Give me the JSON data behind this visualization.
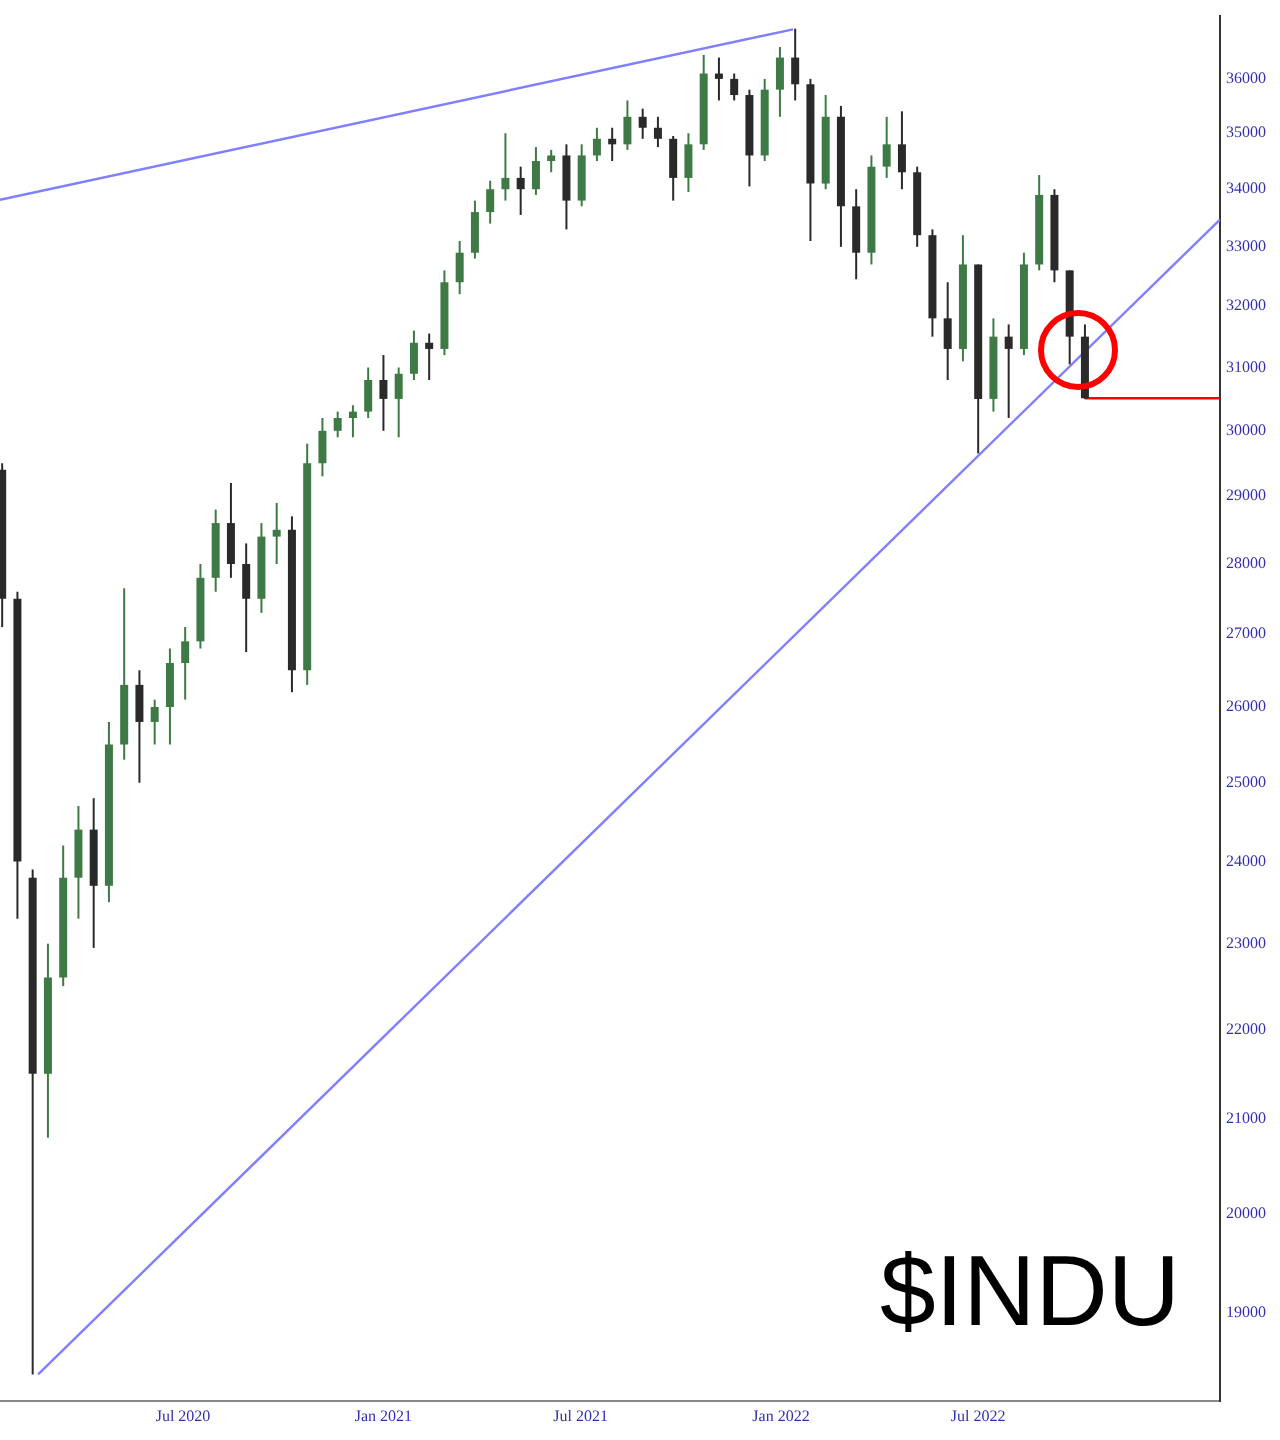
{
  "chart_data": {
    "type": "candlestick",
    "title": "$INDU",
    "colors": [
      "#2a2a2a",
      "#2a2a2a",
      "#2a2a2a",
      "#3d7a45",
      "#3d7a45",
      "#3d7a45",
      "#2a2a2a",
      "#3d7a45",
      "#3d7a45",
      "#2a2a2a",
      "#3d7a45",
      "#3d7a45",
      "#3d7a45",
      "#3d7a45",
      "#3d7a45",
      "#2a2a2a",
      "#2a2a2a",
      "#3d7a45",
      "#3d7a45",
      "#2a2a2a",
      "#3d7a45",
      "#3d7a45",
      "#3d7a45",
      "#3d7a45",
      "#3d7a45",
      "#2a2a2a",
      "#3d7a45",
      "#3d7a45",
      "#2a2a2a",
      "#3d7a45",
      "#3d7a45",
      "#3d7a45",
      "#3d7a45",
      "#3d7a45",
      "#2a2a2a",
      "#3d7a45",
      "#3d7a45",
      "#2a2a2a",
      "#3d7a45",
      "#3d7a45",
      "#2a2a2a",
      "#3d7a45",
      "#2a2a2a",
      "#2a2a2a",
      "#2a2a2a",
      "#3d7a45",
      "#3d7a45",
      "#2a2a2a",
      "#2a2a2a",
      "#2a2a2a",
      "#3d7a45",
      "#3d7a45",
      "#2a2a2a",
      "#2a2a2a",
      "#3d7a45",
      "#2a2a2a",
      "#2a2a2a",
      "#3d7a45",
      "#3d7a45",
      "#2a2a2a",
      "#2a2a2a",
      "#2a2a2a",
      "#2a2a2a",
      "#3d7a45",
      "#2a2a2a",
      "#3d7a45",
      "#2a2a2a",
      "#3d7a45",
      "#3d7a45",
      "#2a2a2a",
      "#2a2a2a",
      "#2a2a2a"
    ],
    "xlim": [
      "2020-01-15",
      "2023-02-08"
    ],
    "xticks": [
      {
        "value": "2020-07-01",
        "label": "Jul 2020"
      },
      {
        "value": "2021-01-01",
        "label": "Jan 2021"
      },
      {
        "value": "2021-07-01",
        "label": "Jul 2021"
      },
      {
        "value": "2022-01-01",
        "label": "Jan 2022"
      },
      {
        "value": "2022-07-01",
        "label": "Jul 2022"
      }
    ],
    "ylim": [
      18150,
      37200
    ],
    "log": true,
    "grid": false,
    "yticks": [
      19000,
      20000,
      21000,
      22000,
      23000,
      24000,
      25000,
      26000,
      27000,
      28000,
      29000,
      30000,
      31000,
      32000,
      33000,
      34000,
      35000,
      36000
    ],
    "x": [
      "2020-01-17",
      "2020-01-31",
      "2020-02-14",
      "2020-02-28",
      "2020-03-13",
      "2020-03-27",
      "2020-04-10",
      "2020-04-24",
      "2020-05-08",
      "2020-05-22",
      "2020-06-05",
      "2020-06-19",
      "2020-07-03",
      "2020-07-17",
      "2020-07-31",
      "2020-08-14",
      "2020-08-28",
      "2020-09-11",
      "2020-09-25",
      "2020-10-09",
      "2020-10-23",
      "2020-11-06",
      "2020-11-20",
      "2020-12-04",
      "2020-12-18",
      "2021-01-01",
      "2021-01-15",
      "2021-01-29",
      "2021-02-12",
      "2021-02-26",
      "2021-03-12",
      "2021-03-26",
      "2021-04-09",
      "2021-04-23",
      "2021-05-07",
      "2021-05-21",
      "2021-06-04",
      "2021-06-18",
      "2021-07-02",
      "2021-07-16",
      "2021-07-30",
      "2021-08-13",
      "2021-08-27",
      "2021-09-10",
      "2021-09-24",
      "2021-10-08",
      "2021-10-22",
      "2021-11-05",
      "2021-11-19",
      "2021-12-03",
      "2021-12-17",
      "2021-12-31",
      "2022-01-14",
      "2022-01-28",
      "2022-02-11",
      "2022-02-25",
      "2022-03-11",
      "2022-03-25",
      "2022-04-08",
      "2022-04-22",
      "2022-05-06",
      "2022-05-20",
      "2022-06-03",
      "2022-06-17",
      "2022-07-01",
      "2022-07-15",
      "2022-07-29",
      "2022-08-12",
      "2022-08-26",
      "2022-09-09",
      "2022-09-23",
      "2022-10-07"
    ],
    "ohlc": [
      [
        29400,
        29500,
        27100,
        27500
      ],
      [
        27500,
        27600,
        23300,
        24000
      ],
      [
        23800,
        23900,
        18400,
        21500
      ],
      [
        21500,
        23000,
        20800,
        22600
      ],
      [
        22600,
        24200,
        22500,
        23800
      ],
      [
        23800,
        24700,
        23300,
        24400
      ],
      [
        24400,
        24800,
        22950,
        23700
      ],
      [
        23700,
        25800,
        23500,
        25500
      ],
      [
        25500,
        27650,
        25300,
        26300
      ],
      [
        26300,
        26500,
        25000,
        25800
      ],
      [
        25800,
        26100,
        25500,
        26000
      ],
      [
        26000,
        26800,
        25500,
        26600
      ],
      [
        26600,
        27100,
        26100,
        26900
      ],
      [
        26900,
        28000,
        26800,
        27800
      ],
      [
        27800,
        28800,
        27600,
        28600
      ],
      [
        28600,
        29200,
        27800,
        28000
      ],
      [
        28000,
        28300,
        26750,
        27500
      ],
      [
        27500,
        28600,
        27300,
        28400
      ],
      [
        28400,
        28900,
        28000,
        28500
      ],
      [
        28500,
        28700,
        26200,
        26500
      ],
      [
        26500,
        29800,
        26300,
        29500
      ],
      [
        29500,
        30200,
        29300,
        30000
      ],
      [
        30000,
        30300,
        29900,
        30200
      ],
      [
        30200,
        30400,
        29900,
        30300
      ],
      [
        30300,
        31000,
        30200,
        30800
      ],
      [
        30800,
        31200,
        30000,
        30500
      ],
      [
        30500,
        31000,
        29900,
        30900
      ],
      [
        30900,
        31600,
        30800,
        31400
      ],
      [
        31400,
        31550,
        30800,
        31300
      ],
      [
        31300,
        32600,
        31200,
        32400
      ],
      [
        32400,
        33100,
        32200,
        32900
      ],
      [
        32900,
        33800,
        32800,
        33600
      ],
      [
        33600,
        34150,
        33400,
        34000
      ],
      [
        34000,
        35000,
        33800,
        34200
      ],
      [
        34200,
        34400,
        33550,
        34000
      ],
      [
        34000,
        34750,
        33900,
        34500
      ],
      [
        34500,
        34700,
        34300,
        34600
      ],
      [
        34600,
        34800,
        33300,
        33800
      ],
      [
        33800,
        34800,
        33700,
        34600
      ],
      [
        34600,
        35100,
        34500,
        34900
      ],
      [
        34900,
        35100,
        34500,
        34800
      ],
      [
        34800,
        35600,
        34700,
        35300
      ],
      [
        35300,
        35450,
        34900,
        35100
      ],
      [
        35100,
        35300,
        34750,
        34900
      ],
      [
        34900,
        34950,
        33800,
        34200
      ],
      [
        34200,
        35000,
        33950,
        34800
      ],
      [
        34800,
        36450,
        34700,
        36100
      ],
      [
        36100,
        36400,
        35600,
        36000
      ],
      [
        36000,
        36100,
        35600,
        35700
      ],
      [
        35700,
        35800,
        34050,
        34600
      ],
      [
        34600,
        36000,
        34500,
        35800
      ],
      [
        35800,
        36600,
        35300,
        36400
      ],
      [
        36400,
        36950,
        35600,
        35900
      ],
      [
        35900,
        36000,
        33100,
        34100
      ],
      [
        34100,
        35700,
        34000,
        35300
      ],
      [
        35300,
        35500,
        33000,
        33700
      ],
      [
        33700,
        34000,
        32450,
        32900
      ],
      [
        32900,
        34600,
        32700,
        34400
      ],
      [
        34400,
        35300,
        34200,
        34800
      ],
      [
        34800,
        35400,
        34000,
        34300
      ],
      [
        34300,
        34400,
        33000,
        33200
      ],
      [
        33200,
        33300,
        31500,
        31800
      ],
      [
        31800,
        32400,
        30800,
        31300
      ],
      [
        31300,
        33200,
        31100,
        32700
      ],
      [
        32700,
        32700,
        29650,
        30500
      ],
      [
        30500,
        31800,
        30300,
        31500
      ],
      [
        31500,
        31700,
        30200,
        31300
      ],
      [
        31300,
        32900,
        31200,
        32700
      ],
      [
        32700,
        34250,
        32600,
        33900
      ],
      [
        33900,
        34000,
        32400,
        32600
      ],
      [
        32600,
        32600,
        31050,
        31500
      ],
      [
        31500,
        31700,
        30500,
        30510
      ]
    ],
    "series": [
      {
        "type": "line",
        "color": "#7f7fff",
        "x": [
          "2020-01-15",
          "2022-01-12"
        ],
        "values": [
          33815,
          36936
        ]
      },
      {
        "type": "line",
        "color": "#7f7fff",
        "x": [
          "2020-02-19",
          "2023-02-08"
        ],
        "values": [
          18400,
          33470
        ]
      },
      {
        "type": "line",
        "color": "#ff0000",
        "x": [
          "2022-10-07",
          "2023-02-08"
        ],
        "values": [
          30510,
          30510
        ]
      }
    ]
  }
}
